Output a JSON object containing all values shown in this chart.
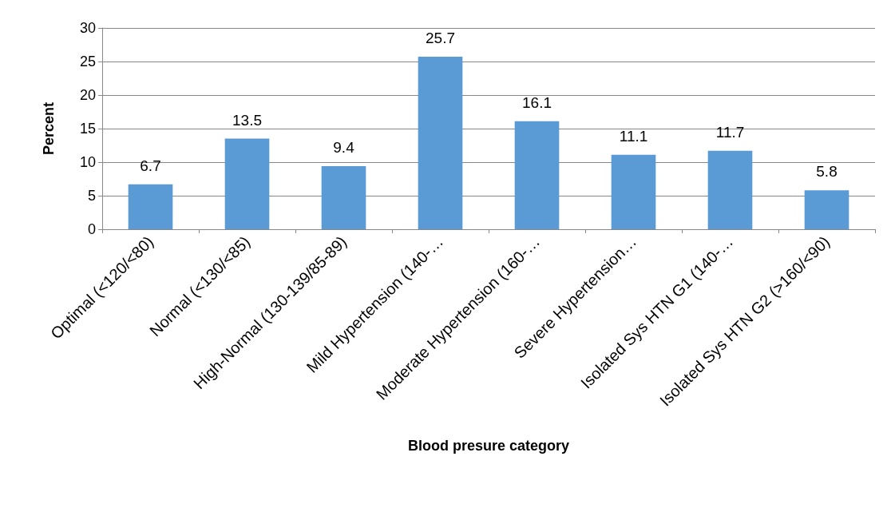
{
  "chart_data": {
    "type": "bar",
    "xlabel": "Blood presure category",
    "ylabel": "Percent",
    "categories": [
      "Optimal (<120/<80)",
      "Normal (<130/<85)",
      "High-Normal (130-139/85-89)",
      "Mild Hypertension (140-…",
      "Moderate Hypertension (160-…",
      "Severe Hypertension…",
      "Isolated Sys HTN G1 (140-…",
      "Isolated Sys HTN G2 (>160/<90)"
    ],
    "values": [
      6.7,
      13.5,
      9.4,
      25.7,
      16.1,
      11.1,
      11.7,
      5.8
    ],
    "color": "#5b9bd5",
    "ylim": [
      0,
      30
    ],
    "yticks": [
      0,
      5,
      10,
      15,
      20,
      25,
      30
    ],
    "grid": "y",
    "data_labels": true
  }
}
